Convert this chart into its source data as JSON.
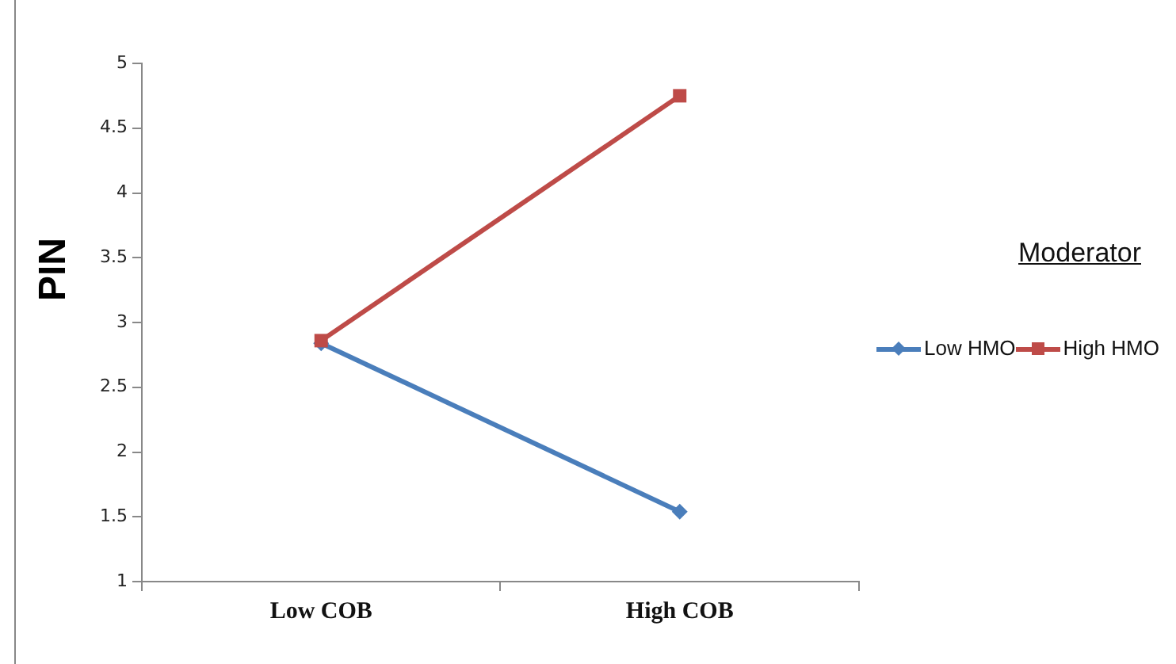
{
  "chart_data": {
    "type": "line",
    "ylabel": "PIN",
    "legend_title": "Moderator",
    "categories": [
      "Low COB",
      "High COB"
    ],
    "series": [
      {
        "name": "Low HMO",
        "color": "#4a7ebb",
        "values": [
          2.84,
          1.54
        ],
        "marker": "diamond"
      },
      {
        "name": "High HMO",
        "color": "#be4b48",
        "values": [
          2.86,
          4.75
        ],
        "marker": "square"
      }
    ],
    "ylim": [
      1,
      5
    ],
    "yticks": [
      1,
      1.5,
      2,
      2.5,
      3,
      3.5,
      4,
      4.5,
      5
    ],
    "grid": false,
    "legend": "right",
    "line_style": "solid"
  }
}
